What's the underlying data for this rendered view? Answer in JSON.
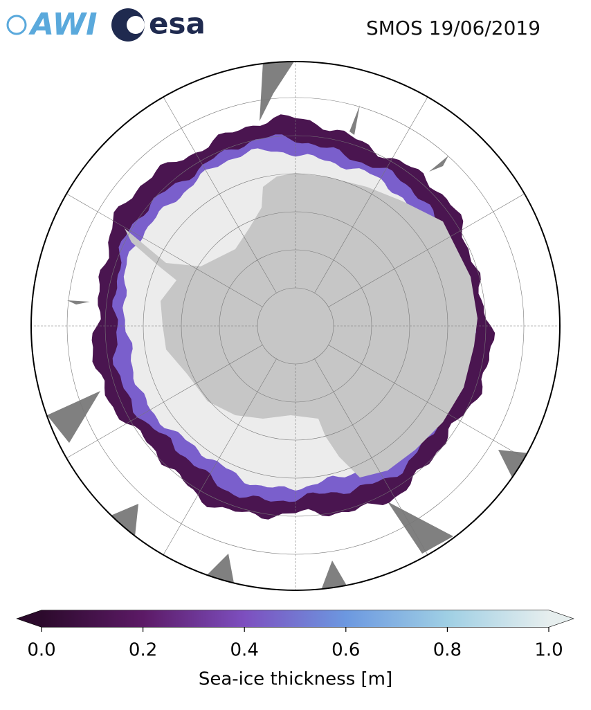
{
  "header": {
    "logos": [
      "AWI",
      "esa"
    ],
    "title": "SMOS 19/06/2019"
  },
  "colorbar": {
    "label": "Sea-ice thickness [m]",
    "lim": [
      0,
      1
    ],
    "ticks": [
      {
        "value": 0,
        "label": "0.0"
      },
      0.2,
      0.4,
      0.6,
      0.8,
      {
        "value": 1,
        "label": "1.0"
      }
    ],
    "colors": [
      "#2c0a2c",
      "#5c1a66",
      "#7d4fbf",
      "#6c98e0",
      "#9fcfe4",
      "#e6eeee"
    ]
  }
}
